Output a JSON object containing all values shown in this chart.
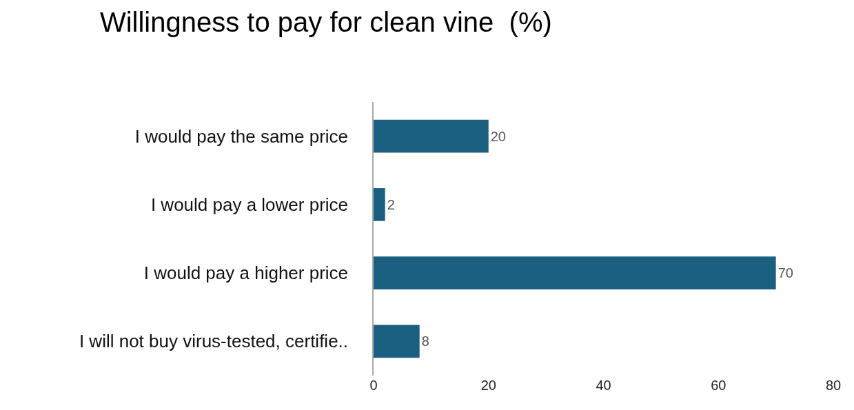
{
  "chart_data": {
    "type": "bar",
    "orientation": "horizontal",
    "title": "Willingness to pay for clean vine  (%)",
    "categories": [
      "I would pay the same price",
      "I would pay a lower price",
      "I would pay a higher price",
      "I will not buy virus-tested, certifie.."
    ],
    "values": [
      20,
      2,
      70,
      8
    ],
    "color": "#1a5e80",
    "data_labels": true,
    "xlim": [
      0,
      80
    ],
    "xticks": [
      0,
      20,
      40,
      60,
      80
    ],
    "grid": false,
    "legend": false
  }
}
